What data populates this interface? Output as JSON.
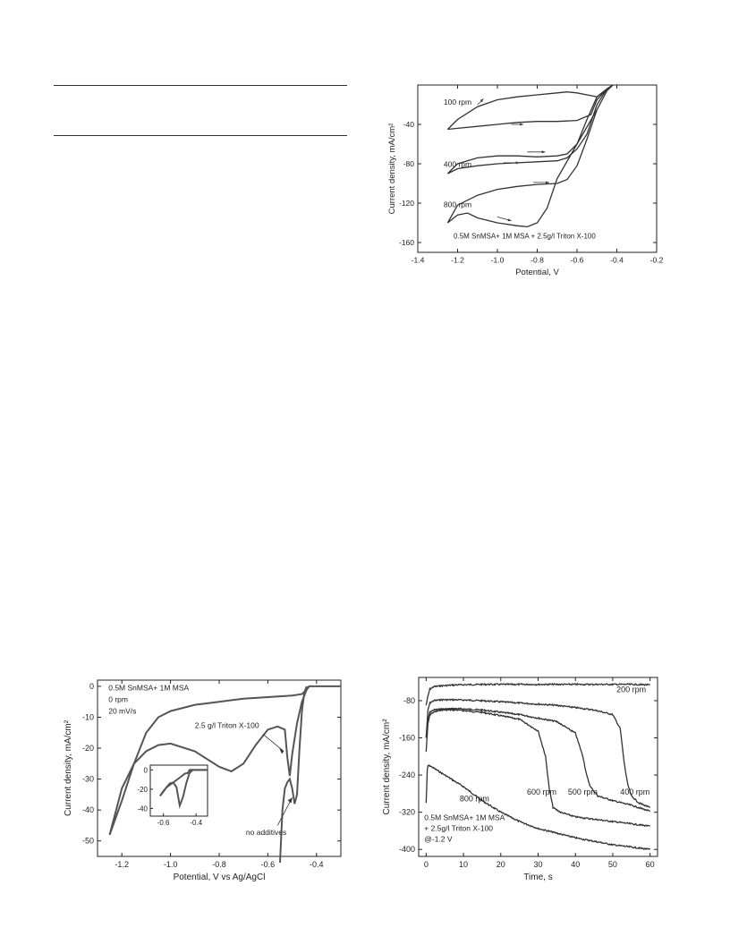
{
  "chart_data": [
    {
      "id": "cv_rpm",
      "type": "line",
      "xlabel": "Potential, V",
      "ylabel": "Current density, mA/cm²",
      "xticks": [
        "-1.4",
        "-1.2",
        "-1.0",
        "-0.8",
        "-0.6",
        "-0.4",
        "-0.2"
      ],
      "yticks": [
        "-40",
        "-80",
        "-120",
        "-160"
      ],
      "xlim": [
        -1.4,
        -0.2
      ],
      "ylim": [
        -170,
        0
      ],
      "annotation": "0.5M SnMSA+ 1M MSA + 2.5g/l Triton X-100",
      "series": [
        {
          "name": "100 rpm",
          "x": [
            -1.25,
            -1.2,
            -1.1,
            -1.0,
            -0.9,
            -0.8,
            -0.7,
            -0.65,
            -0.6,
            -0.55,
            -0.5,
            -0.45,
            -0.42,
            -0.45,
            -0.5,
            -0.53,
            -0.6,
            -0.7,
            -0.8,
            -0.9,
            -1.0,
            -1.1,
            -1.2,
            -1.25
          ],
          "y": [
            -45,
            -35,
            -22,
            -15,
            -12,
            -10,
            -8,
            -7,
            -8,
            -10,
            -12,
            -4,
            0,
            -4,
            -15,
            -30,
            -36,
            -37,
            -37,
            -38,
            -40,
            -42,
            -44,
            -45
          ]
        },
        {
          "name": "400 rpm",
          "x": [
            -1.25,
            -1.2,
            -1.1,
            -1.0,
            -0.9,
            -0.8,
            -0.7,
            -0.65,
            -0.6,
            -0.55,
            -0.5,
            -0.45,
            -0.42,
            -0.45,
            -0.5,
            -0.55,
            -0.6,
            -0.65,
            -0.7,
            -0.8,
            -0.9,
            -1.0,
            -1.1,
            -1.2,
            -1.25
          ],
          "y": [
            -90,
            -80,
            -74,
            -72,
            -72,
            -73,
            -72,
            -70,
            -60,
            -35,
            -12,
            -4,
            0,
            -4,
            -20,
            -50,
            -65,
            -74,
            -77,
            -78,
            -79,
            -80,
            -82,
            -85,
            -90
          ]
        },
        {
          "name": "800 rpm",
          "x": [
            -1.25,
            -1.2,
            -1.15,
            -1.1,
            -1.0,
            -0.9,
            -0.85,
            -0.8,
            -0.75,
            -0.7,
            -0.6,
            -0.5,
            -0.45,
            -0.42,
            -0.45,
            -0.5,
            -0.55,
            -0.6,
            -0.65,
            -0.7,
            -0.8,
            -0.9,
            -1.0,
            -1.1,
            -1.2,
            -1.25
          ],
          "y": [
            -140,
            -132,
            -130,
            -135,
            -140,
            -143,
            -144,
            -140,
            -125,
            -95,
            -60,
            -25,
            -6,
            0,
            -6,
            -25,
            -55,
            -82,
            -96,
            -100,
            -101,
            -103,
            -106,
            -112,
            -122,
            -140
          ]
        }
      ]
    },
    {
      "id": "cv_additives",
      "type": "line",
      "xlabel": "Potential, V vs Ag/AgCl",
      "ylabel": "Current density, mA/cm²",
      "xticks": [
        "-1.2",
        "-1.0",
        "-0.8",
        "-0.6",
        "-0.4"
      ],
      "yticks": [
        "0",
        "-10",
        "-20",
        "-30",
        "-40",
        "-50"
      ],
      "xlim": [
        -1.3,
        -0.3
      ],
      "ylim": [
        -55,
        2
      ],
      "legend_text": [
        "0.5M SnMSA+ 1M MSA",
        "0 rpm",
        "20 mV/s"
      ],
      "labels": [
        "2.5 g/l Triton X-100",
        "no additives"
      ],
      "inset": {
        "xticks": [
          "-0.6",
          "-0.4"
        ],
        "yticks": [
          "0",
          "-20",
          "-40"
        ]
      },
      "series": [
        {
          "name": "2.5 g/l Triton X-100",
          "x": [
            -1.25,
            -1.2,
            -1.15,
            -1.1,
            -1.05,
            -1.0,
            -0.9,
            -0.8,
            -0.75,
            -0.7,
            -0.65,
            -0.6,
            -0.56,
            -0.53,
            -0.52,
            -0.51,
            -0.5,
            -0.48,
            -0.46,
            -0.44,
            -0.43,
            -0.3
          ],
          "y": [
            -48,
            -33,
            -25,
            -21,
            -19,
            -18.5,
            -21,
            -26,
            -27.5,
            -25,
            -19,
            -14,
            -13,
            -14,
            -23,
            -29,
            -22,
            -12,
            -5,
            -1,
            0,
            0
          ]
        },
        {
          "name": "",
          "x": [
            -0.43,
            -0.44,
            -0.46,
            -0.5,
            -0.6,
            -0.7,
            -0.8,
            -0.9,
            -1.0,
            -1.05,
            -1.1,
            -1.15,
            -1.2,
            -1.25
          ],
          "y": [
            0,
            -1,
            -2.5,
            -3,
            -3.5,
            -4,
            -5,
            -6,
            -8,
            -10,
            -15,
            -25,
            -37,
            -48
          ]
        },
        {
          "name": "no additives",
          "x": [
            -0.55,
            -0.54,
            -0.53,
            -0.52,
            -0.51,
            -0.5,
            -0.49,
            -0.48,
            -0.47,
            -0.46,
            -0.45,
            -0.44
          ],
          "y": [
            -57,
            -40,
            -33,
            -31,
            -30,
            -33,
            -38,
            -35,
            -20,
            -8,
            -2,
            0
          ]
        }
      ]
    },
    {
      "id": "ca_rpm",
      "type": "line",
      "xlabel": "Time, s",
      "ylabel": "Current density, mA/cm²",
      "xticks": [
        "0",
        "10",
        "20",
        "30",
        "40",
        "50",
        "60"
      ],
      "yticks": [
        "-80",
        "-160",
        "-240",
        "-320",
        "-400"
      ],
      "xlim": [
        -2,
        62
      ],
      "ylim": [
        -415,
        -30
      ],
      "legend_text": [
        "0.5M SnMSA+ 1M MSA",
        "+ 2.5g/l Triton X-100",
        "@-1.2 V"
      ],
      "series": [
        {
          "name": "200 rpm",
          "x": [
            0,
            0.5,
            1,
            2,
            4,
            8,
            15,
            25,
            35,
            45,
            55,
            60
          ],
          "y": [
            -90,
            -70,
            -55,
            -50,
            -48,
            -46,
            -45,
            -45,
            -45,
            -45,
            -45,
            -46
          ]
        },
        {
          "name": "400 rpm",
          "x": [
            0,
            0.5,
            1,
            2,
            4,
            8,
            15,
            25,
            35,
            45,
            50,
            52,
            53,
            54,
            55,
            57,
            60
          ],
          "y": [
            -160,
            -100,
            -85,
            -80,
            -78,
            -78,
            -80,
            -85,
            -90,
            -100,
            -110,
            -140,
            -210,
            -260,
            -285,
            -300,
            -310
          ]
        },
        {
          "name": "500 rpm",
          "x": [
            0,
            0.5,
            1,
            2,
            4,
            8,
            15,
            25,
            35,
            40,
            42,
            43,
            44,
            46,
            50,
            55,
            60
          ],
          "y": [
            -160,
            -120,
            -105,
            -100,
            -98,
            -97,
            -100,
            -110,
            -125,
            -150,
            -200,
            -240,
            -265,
            -285,
            -295,
            -305,
            -318
          ]
        },
        {
          "name": "600 rpm",
          "x": [
            0,
            0.5,
            1,
            2,
            4,
            8,
            15,
            25,
            30,
            32,
            33,
            34,
            36,
            40,
            50,
            60
          ],
          "y": [
            -190,
            -130,
            -110,
            -105,
            -100,
            -100,
            -105,
            -120,
            -145,
            -200,
            -270,
            -310,
            -320,
            -330,
            -340,
            -350
          ]
        },
        {
          "name": "800 rpm",
          "x": [
            0,
            0.3,
            0.5,
            1,
            3,
            6,
            10,
            15,
            20,
            25,
            30,
            40,
            50,
            60
          ],
          "y": [
            -300,
            -230,
            -220,
            -220,
            -230,
            -245,
            -265,
            -295,
            -320,
            -340,
            -355,
            -375,
            -390,
            -400
          ]
        }
      ]
    }
  ]
}
